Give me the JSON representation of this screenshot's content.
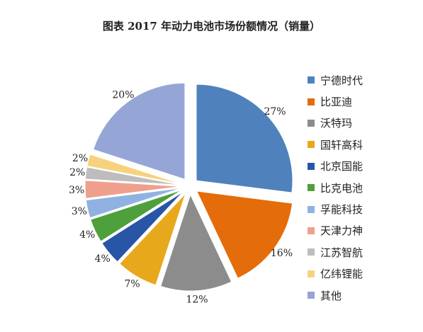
{
  "chart_data": {
    "type": "pie",
    "title": "图表 2017 年动力电池市场份额情况（销量）",
    "legend_position": "right",
    "categories": [
      "宁德时代",
      "比亚迪",
      "沃特玛",
      "国轩高科",
      "北京国能",
      "比克电池",
      "孚能科技",
      "天津力神",
      "江苏智航",
      "亿纬锂能",
      "其他"
    ],
    "values": [
      27,
      16,
      12,
      7,
      4,
      4,
      3,
      3,
      2,
      2,
      20
    ],
    "value_labels": [
      "27%",
      "16%",
      "12%",
      "7%",
      "4%",
      "4%",
      "3%",
      "3%",
      "2%",
      "2%",
      "20%"
    ],
    "colors": [
      "#4F81BD",
      "#E46C0A",
      "#8C8C8C",
      "#E8A81C",
      "#2955A6",
      "#4EA03C",
      "#8FB2E3",
      "#EFA08C",
      "#BDBDBD",
      "#F6D27C",
      "#95A6D6"
    ]
  }
}
